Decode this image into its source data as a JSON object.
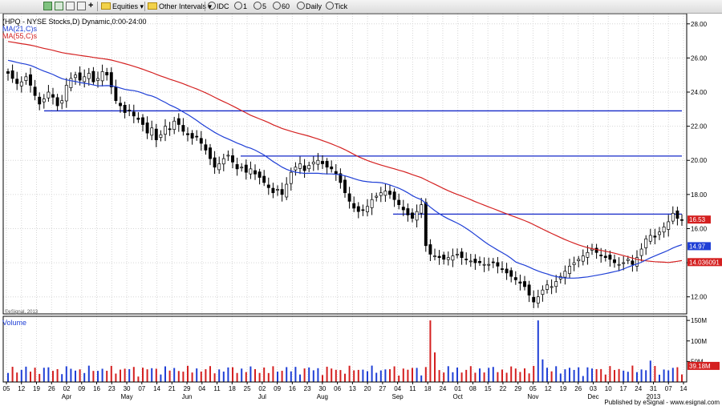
{
  "toolbar": {
    "equities": "Equities",
    "other_intervals": "Other Intervals",
    "idc": "IDC",
    "i1": "1",
    "i5": "5",
    "i60": "60",
    "daily": "Daily",
    "tick": "Tick"
  },
  "header": {
    "symbol_line": "(HPQ - NYSE Stocks,D) Dynamic,0:00-24:00",
    "ma21": "MA(21,C)s",
    "ma55": "MA(55,C)s"
  },
  "watermark": "©eSignal, 2013",
  "footer": "Published by eSignal - www.esignal.com",
  "colors": {
    "price": "#000000",
    "ma21": "#1f3fd6",
    "ma55": "#d42020",
    "hline": "#1428c8",
    "vol_up": "#1f3fd6",
    "vol_down": "#d42020"
  },
  "chart_data": [
    {
      "type": "candlestick",
      "title": "(HPQ - NYSE Stocks,D) Dynamic,0:00-24:00",
      "ylim": [
        11,
        28.6
      ],
      "y_ticks": [
        "28.00",
        "26.00",
        "24.00",
        "22.00",
        "20.00",
        "18.00",
        "16.00",
        "14.00",
        "12.00"
      ],
      "x_ticks": [
        "05",
        "12",
        "19",
        "26",
        "02",
        "09",
        "16",
        "23",
        "30",
        "07",
        "14",
        "21",
        "29",
        "04",
        "11",
        "18",
        "25",
        "02",
        "09",
        "16",
        "23",
        "30",
        "06",
        "13",
        "20",
        "27",
        "04",
        "11",
        "18",
        "24",
        "01",
        "08",
        "15",
        "22",
        "29",
        "05",
        "12",
        "19",
        "26",
        "03",
        "10",
        "17",
        "24",
        "31",
        "07",
        "14"
      ],
      "month_labels": [
        "Apr",
        "May",
        "Jun",
        "Jul",
        "Aug",
        "Sep",
        "Oct",
        "Nov",
        "Dec",
        "2013"
      ],
      "close": [
        25.1,
        24.8,
        24.5,
        24.6,
        24.9,
        24.4,
        23.8,
        23.3,
        23.6,
        24.0,
        23.7,
        23.2,
        23.5,
        24.4,
        24.8,
        25.0,
        24.7,
        24.9,
        25.1,
        24.6,
        24.8,
        25.2,
        25.0,
        24.3,
        23.5,
        23.2,
        22.8,
        22.9,
        22.6,
        22.4,
        22.1,
        21.6,
        21.9,
        21.2,
        21.5,
        22.0,
        21.8,
        22.3,
        22.1,
        21.7,
        21.5,
        21.3,
        21.4,
        21.0,
        20.6,
        20.1,
        19.6,
        19.8,
        20.1,
        20.3,
        19.9,
        19.5,
        19.6,
        19.3,
        19.5,
        19.2,
        19.0,
        18.7,
        18.4,
        18.1,
        18.3,
        18.0,
        18.6,
        19.3,
        19.6,
        19.8,
        19.4,
        19.7,
        19.9,
        20.0,
        19.8,
        19.6,
        19.5,
        19.2,
        18.7,
        18.1,
        17.6,
        17.2,
        17.0,
        17.1,
        17.3,
        17.7,
        17.9,
        18.1,
        18.2,
        18.0,
        17.7,
        17.4,
        17.1,
        16.8,
        16.6,
        17.0,
        17.4,
        15.0,
        14.5,
        14.4,
        14.3,
        14.2,
        14.3,
        14.4,
        14.5,
        14.3,
        14.2,
        14.1,
        14.0,
        14.0,
        13.9,
        13.9,
        14.0,
        13.8,
        13.6,
        13.4,
        13.2,
        13.0,
        12.8,
        12.6,
        12.1,
        11.7,
        12.0,
        12.4,
        12.7,
        12.6,
        12.9,
        13.2,
        13.5,
        13.8,
        14.0,
        14.2,
        14.4,
        14.6,
        14.8,
        14.6,
        14.4,
        14.3,
        14.2,
        14.0,
        13.9,
        14.0,
        14.2,
        13.9,
        14.3,
        14.8,
        15.4,
        15.6,
        15.5,
        15.8,
        16.1,
        16.4,
        16.9,
        16.6,
        16.5
      ],
      "ma21_end": 14.97,
      "ma55_end": 14.036091,
      "last_price": 16.53,
      "horizontal_lines": [
        {
          "y": 22.9,
          "x_from": 55
        },
        {
          "y": 20.25,
          "x_from": 300
        },
        {
          "y": 16.85,
          "x_from": 490
        }
      ],
      "price_labels": [
        {
          "text": "16.53",
          "y": 16.53,
          "color": "#d42020"
        },
        {
          "text": "14.97",
          "y": 14.97,
          "color": "#1f3fd6"
        },
        {
          "text": "14.036091",
          "y": 14.036,
          "color": "#d42020"
        }
      ]
    },
    {
      "type": "bar",
      "title": "Volume",
      "ylim": [
        0,
        160
      ],
      "y_ticks": [
        "150M",
        "100M",
        "50M"
      ],
      "last_volume": "39.18M",
      "spikes": [
        {
          "index": 94,
          "value": 150,
          "color": "#d42020"
        },
        {
          "index": 95,
          "value": 72,
          "color": "#d42020"
        },
        {
          "index": 118,
          "value": 150,
          "color": "#1f3fd6"
        },
        {
          "index": 119,
          "value": 55,
          "color": "#1f3fd6"
        },
        {
          "index": 143,
          "value": 52,
          "color": "#1f3fd6"
        }
      ]
    }
  ]
}
